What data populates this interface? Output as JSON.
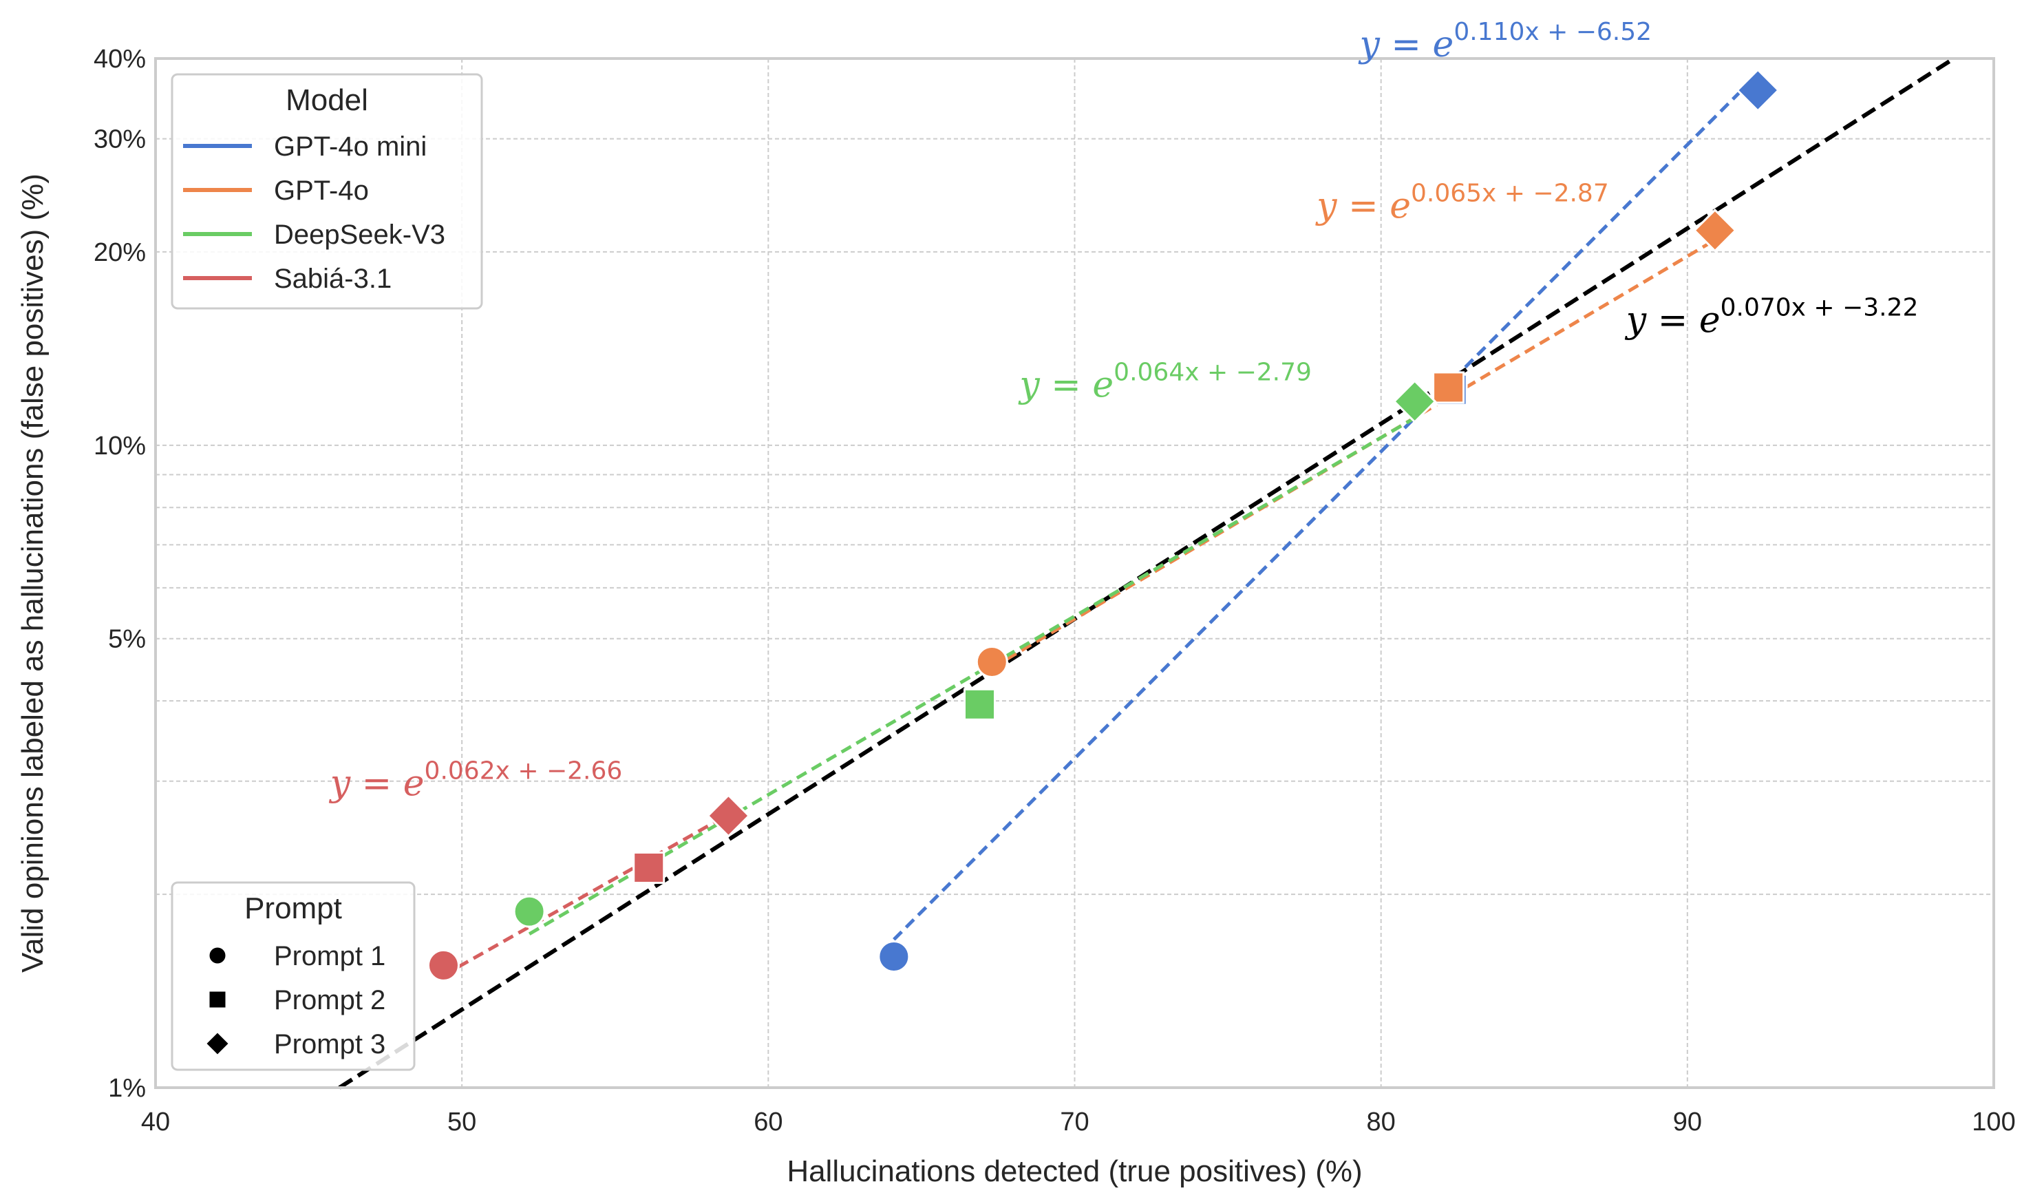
{
  "chart_data": {
    "type": "scatter",
    "xlabel": "Hallucinations detected (true positives) (%)",
    "ylabel": "Valid opinions labeled as hallucinations (false positives) (%)",
    "xlim": [
      40,
      100
    ],
    "ylim": [
      1,
      40
    ],
    "yscale": "log",
    "grid": true,
    "x_ticks": [
      40,
      50,
      60,
      70,
      80,
      90,
      100
    ],
    "x_tick_labels": [
      "40",
      "50",
      "60",
      "70",
      "80",
      "90",
      "100"
    ],
    "y_ticks": [
      1,
      5,
      10,
      20,
      30,
      40
    ],
    "y_tick_labels": [
      "1%",
      "5%",
      "10%",
      "20%",
      "30%",
      "40%"
    ],
    "legend_model": {
      "title": "Model",
      "placement": "top-left",
      "entries": [
        {
          "label": "GPT-4o mini",
          "color": "#4878d0"
        },
        {
          "label": "GPT-4o",
          "color": "#ee854a"
        },
        {
          "label": "DeepSeek-V3",
          "color": "#6acc64"
        },
        {
          "label": "Sabiá-3.1",
          "color": "#d65f5f"
        }
      ]
    },
    "legend_prompt": {
      "title": "Prompt",
      "placement": "bottom-left",
      "entries": [
        {
          "label": "Prompt 1",
          "marker": "circle"
        },
        {
          "label": "Prompt 2",
          "marker": "square"
        },
        {
          "label": "Prompt 3",
          "marker": "diamond"
        }
      ]
    },
    "series": [
      {
        "model": "GPT-4o mini",
        "color": "#4878d0",
        "points": [
          {
            "prompt": "Prompt 1",
            "x": 64.1,
            "y": 1.6
          },
          {
            "prompt": "Prompt 2",
            "x": 82.3,
            "y": 12.2
          },
          {
            "prompt": "Prompt 3",
            "x": 92.3,
            "y": 35.7
          }
        ],
        "fit": {
          "a": 0.11,
          "b": -6.52,
          "exp_text": "0.110x + −6.52"
        }
      },
      {
        "model": "GPT-4o",
        "color": "#ee854a",
        "points": [
          {
            "prompt": "Prompt 1",
            "x": 67.3,
            "y": 4.6
          },
          {
            "prompt": "Prompt 2",
            "x": 82.2,
            "y": 12.3
          },
          {
            "prompt": "Prompt 3",
            "x": 90.9,
            "y": 21.6
          }
        ],
        "fit": {
          "a": 0.065,
          "b": -2.87,
          "exp_text": "0.065x + −2.87"
        }
      },
      {
        "model": "DeepSeek-V3",
        "color": "#6acc64",
        "points": [
          {
            "prompt": "Prompt 1",
            "x": 52.2,
            "y": 1.88
          },
          {
            "prompt": "Prompt 2",
            "x": 66.9,
            "y": 3.95
          },
          {
            "prompt": "Prompt 3",
            "x": 81.1,
            "y": 11.7
          }
        ],
        "fit": {
          "a": 0.064,
          "b": -2.79,
          "exp_text": "0.064x + −2.79"
        }
      },
      {
        "model": "Sabiá-3.1",
        "color": "#d65f5f",
        "points": [
          {
            "prompt": "Prompt 1",
            "x": 49.4,
            "y": 1.55
          },
          {
            "prompt": "Prompt 2",
            "x": 56.1,
            "y": 2.2
          },
          {
            "prompt": "Prompt 3",
            "x": 58.7,
            "y": 2.65
          }
        ],
        "fit": {
          "a": 0.062,
          "b": -2.66,
          "exp_text": "0.062x + −2.66"
        }
      }
    ],
    "overall_fit": {
      "color": "#000000",
      "a": 0.07,
      "b": -3.22,
      "exp_text": "0.070x + −3.22"
    },
    "annotations": [
      {
        "series": "GPT-4o mini",
        "color": "#4878d0",
        "x": 79.3,
        "y": 40.3,
        "prefix": "y = e",
        "exp": "0.110x + −6.52"
      },
      {
        "series": "GPT-4o",
        "color": "#ee854a",
        "x": 77.9,
        "y": 22.6,
        "prefix": "y = e",
        "exp": "0.065x + −2.87"
      },
      {
        "series": "overall",
        "color": "#000000",
        "x": 88.0,
        "y": 15.0,
        "prefix": "y = e",
        "exp": "0.070x + −3.22"
      },
      {
        "series": "DeepSeek-V3",
        "color": "#6acc64",
        "x": 68.2,
        "y": 11.9,
        "prefix": "y = e",
        "exp": "0.064x + −2.79"
      },
      {
        "series": "Sabiá-3.1",
        "color": "#d65f5f",
        "x": 45.7,
        "y": 2.85,
        "prefix": "y = e",
        "exp": "0.062x + −2.66"
      }
    ]
  }
}
